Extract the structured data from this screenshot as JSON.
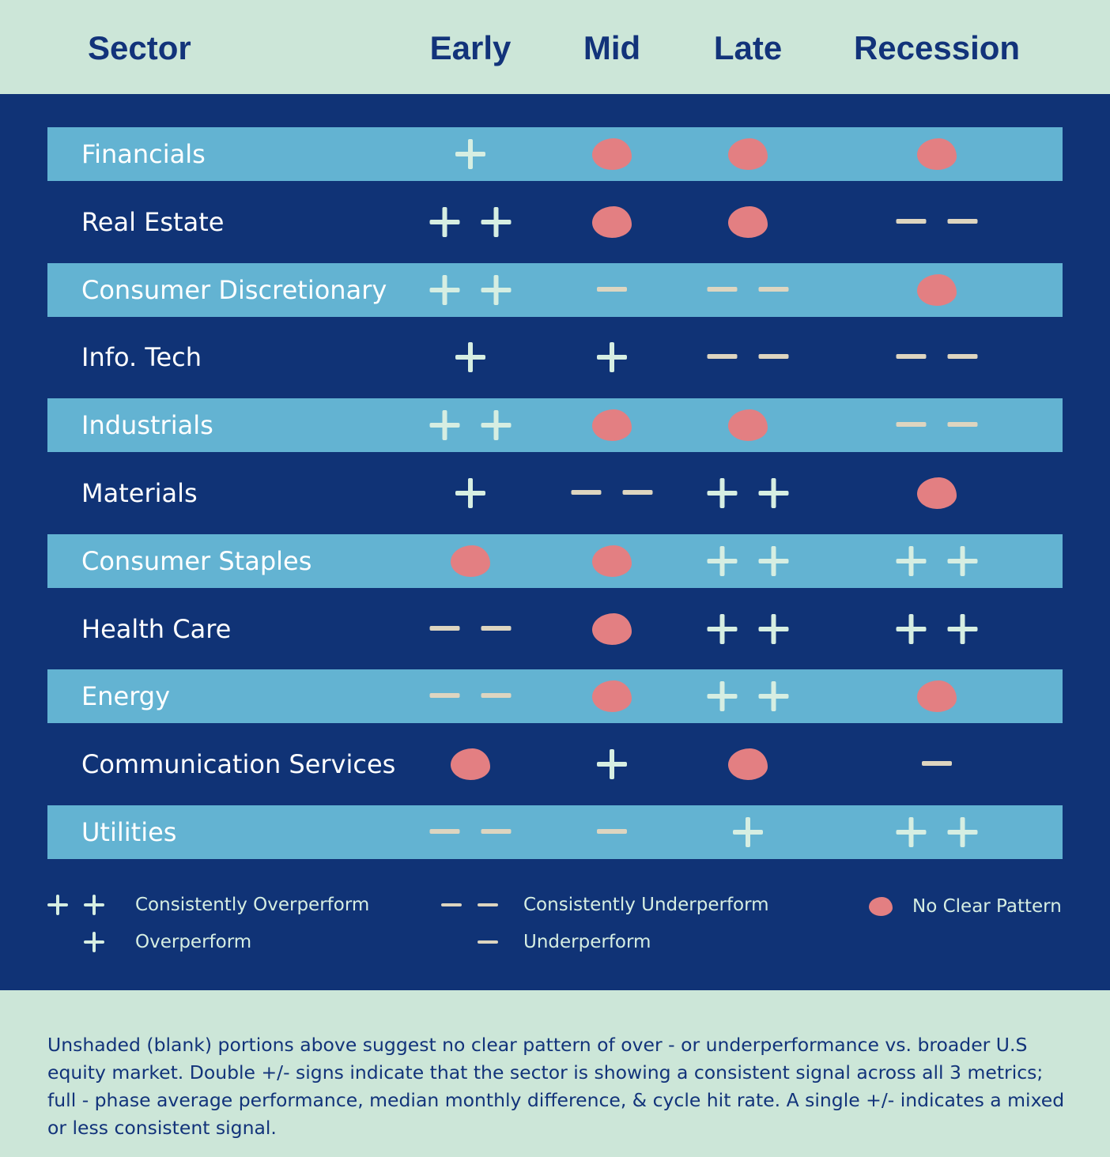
{
  "header": {
    "sector": "Sector",
    "phases": [
      "Early",
      "Mid",
      "Late",
      "Recession"
    ]
  },
  "chart_data": {
    "type": "table",
    "columns": [
      "Sector",
      "Early",
      "Mid",
      "Late",
      "Recession"
    ],
    "value_key": {
      "2": "++",
      "1": "+",
      "0": "no clear pattern",
      "-1": "-",
      "-2": "--"
    },
    "rows": [
      {
        "sector": "Financials",
        "values": [
          1,
          0,
          0,
          0
        ]
      },
      {
        "sector": "Real Estate",
        "values": [
          2,
          0,
          0,
          -2
        ]
      },
      {
        "sector": "Consumer Discretionary",
        "values": [
          2,
          -1,
          -2,
          0
        ]
      },
      {
        "sector": "Info. Tech",
        "values": [
          1,
          1,
          -2,
          -2
        ]
      },
      {
        "sector": "Industrials",
        "values": [
          2,
          0,
          0,
          -2
        ]
      },
      {
        "sector": "Materials",
        "values": [
          1,
          -2,
          2,
          0
        ]
      },
      {
        "sector": "Consumer Staples",
        "values": [
          0,
          0,
          2,
          2
        ]
      },
      {
        "sector": "Health Care",
        "values": [
          -2,
          0,
          2,
          2
        ]
      },
      {
        "sector": "Energy",
        "values": [
          -2,
          0,
          2,
          0
        ]
      },
      {
        "sector": "Communication Services",
        "values": [
          0,
          1,
          0,
          -1
        ]
      },
      {
        "sector": "Utilities",
        "values": [
          -2,
          -1,
          1,
          2
        ]
      }
    ]
  },
  "legend": {
    "consistently_overperform": "Consistently Overperform",
    "overperform": "Overperform",
    "consistently_underperform": "Consistently Underperform",
    "underperform": "Underperform",
    "no_clear_pattern": "No Clear Pattern"
  },
  "colors": {
    "header_bg": "#cce6d8",
    "panel_bg": "#103376",
    "row_shade": "#63b3d2",
    "plus": "#d6eee2",
    "minus": "#ddd5c0",
    "no_pattern": "#e37f82",
    "title_text": "#12337a"
  },
  "footnote": "Unshaded (blank) portions above suggest no clear pattern of over - or underperformance vs. broader U.S equity market. Double +/- signs indicate that the sector is showing a consistent signal across all 3 metrics; full - phase average performance, median monthly difference, & cycle hit rate. A single +/- indicates a mixed or less consistent signal."
}
